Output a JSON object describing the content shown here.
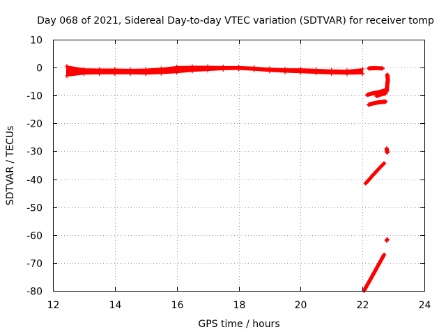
{
  "chart_data": {
    "type": "scatter",
    "title": "Day 068 of 2021, Sidereal Day-to-day VTEC variation (SDTVAR) for receiver tomp",
    "xlabel": "GPS time / hours",
    "ylabel": "SDTVAR / TECUs",
    "xlim": [
      12,
      24
    ],
    "ylim": [
      -80,
      10
    ],
    "xticks": [
      12,
      14,
      16,
      18,
      20,
      22,
      24
    ],
    "xtick_labels": [
      "12",
      "14",
      "16",
      "18",
      "20",
      "22",
      "24"
    ],
    "yticks": [
      10,
      0,
      -10,
      -20,
      -30,
      -40,
      -50,
      -60,
      -70,
      -80
    ],
    "ytick_labels": [
      "10",
      "0",
      "-10",
      "-20",
      "-30",
      "-40",
      "-50",
      "-60",
      "-70",
      "-80"
    ],
    "grid": true,
    "marker": "+",
    "color": "#ff0000",
    "series": [
      {
        "band": true,
        "x": [
          12.45,
          13.0,
          13.5,
          14.0,
          14.5,
          15.0,
          15.5,
          16.0,
          16.5,
          17.0,
          17.5,
          18.0,
          18.5,
          19.0,
          19.5,
          20.0,
          20.5,
          21.0,
          21.5,
          22.0
        ],
        "ymin": [
          -3.0,
          -2.3,
          -2.2,
          -2.2,
          -2.2,
          -2.3,
          -2.1,
          -1.8,
          -1.3,
          -1.0,
          -0.7,
          -0.6,
          -0.9,
          -1.3,
          -1.6,
          -1.8,
          -2.0,
          -2.2,
          -2.3,
          -2.2
        ],
        "ymax": [
          0.5,
          -0.5,
          -0.6,
          -0.6,
          -0.7,
          -0.6,
          -0.3,
          0.3,
          0.4,
          0.4,
          0.3,
          0.3,
          0.1,
          -0.3,
          -0.5,
          -0.5,
          -0.7,
          -0.9,
          -1.0,
          -0.5
        ]
      },
      {
        "x": [
          22.2,
          22.4,
          22.65
        ],
        "y": [
          -0.3,
          -0.2,
          -0.3
        ]
      },
      {
        "x": [
          22.15,
          22.3,
          22.45,
          22.6,
          22.7,
          22.8
        ],
        "y": [
          -9.8,
          -9.3,
          -9.0,
          -8.6,
          -8.3,
          -8.0
        ]
      },
      {
        "x": [
          22.45,
          22.55,
          22.65,
          22.75
        ],
        "y": [
          -10.2,
          -9.8,
          -9.4,
          -9.2
        ]
      },
      {
        "x": [
          22.2,
          22.35,
          22.5,
          22.65,
          22.75
        ],
        "y": [
          -13.3,
          -12.8,
          -12.5,
          -12.3,
          -12.2
        ]
      },
      {
        "x": [
          22.8,
          22.82,
          22.8,
          22.78
        ],
        "y": [
          -2.5,
          -4.5,
          -6.0,
          -8.5
        ]
      },
      {
        "x": [
          22.1,
          22.2,
          22.3,
          22.4,
          22.5,
          22.6,
          22.7
        ],
        "y": [
          -41.5,
          -40.3,
          -39.0,
          -37.8,
          -36.6,
          -35.4,
          -34.3
        ]
      },
      {
        "x": [
          22.78,
          22.8
        ],
        "y": [
          -29.0,
          -30.5
        ]
      },
      {
        "x": [
          22.05,
          22.12,
          22.2,
          22.3,
          22.4,
          22.5,
          22.6,
          22.7
        ],
        "y": [
          -80.0,
          -78.5,
          -77.0,
          -75.0,
          -73.0,
          -71.0,
          -69.0,
          -67.0
        ]
      },
      {
        "x": [
          22.78,
          22.8
        ],
        "y": [
          -62.0,
          -61.5
        ]
      }
    ]
  }
}
